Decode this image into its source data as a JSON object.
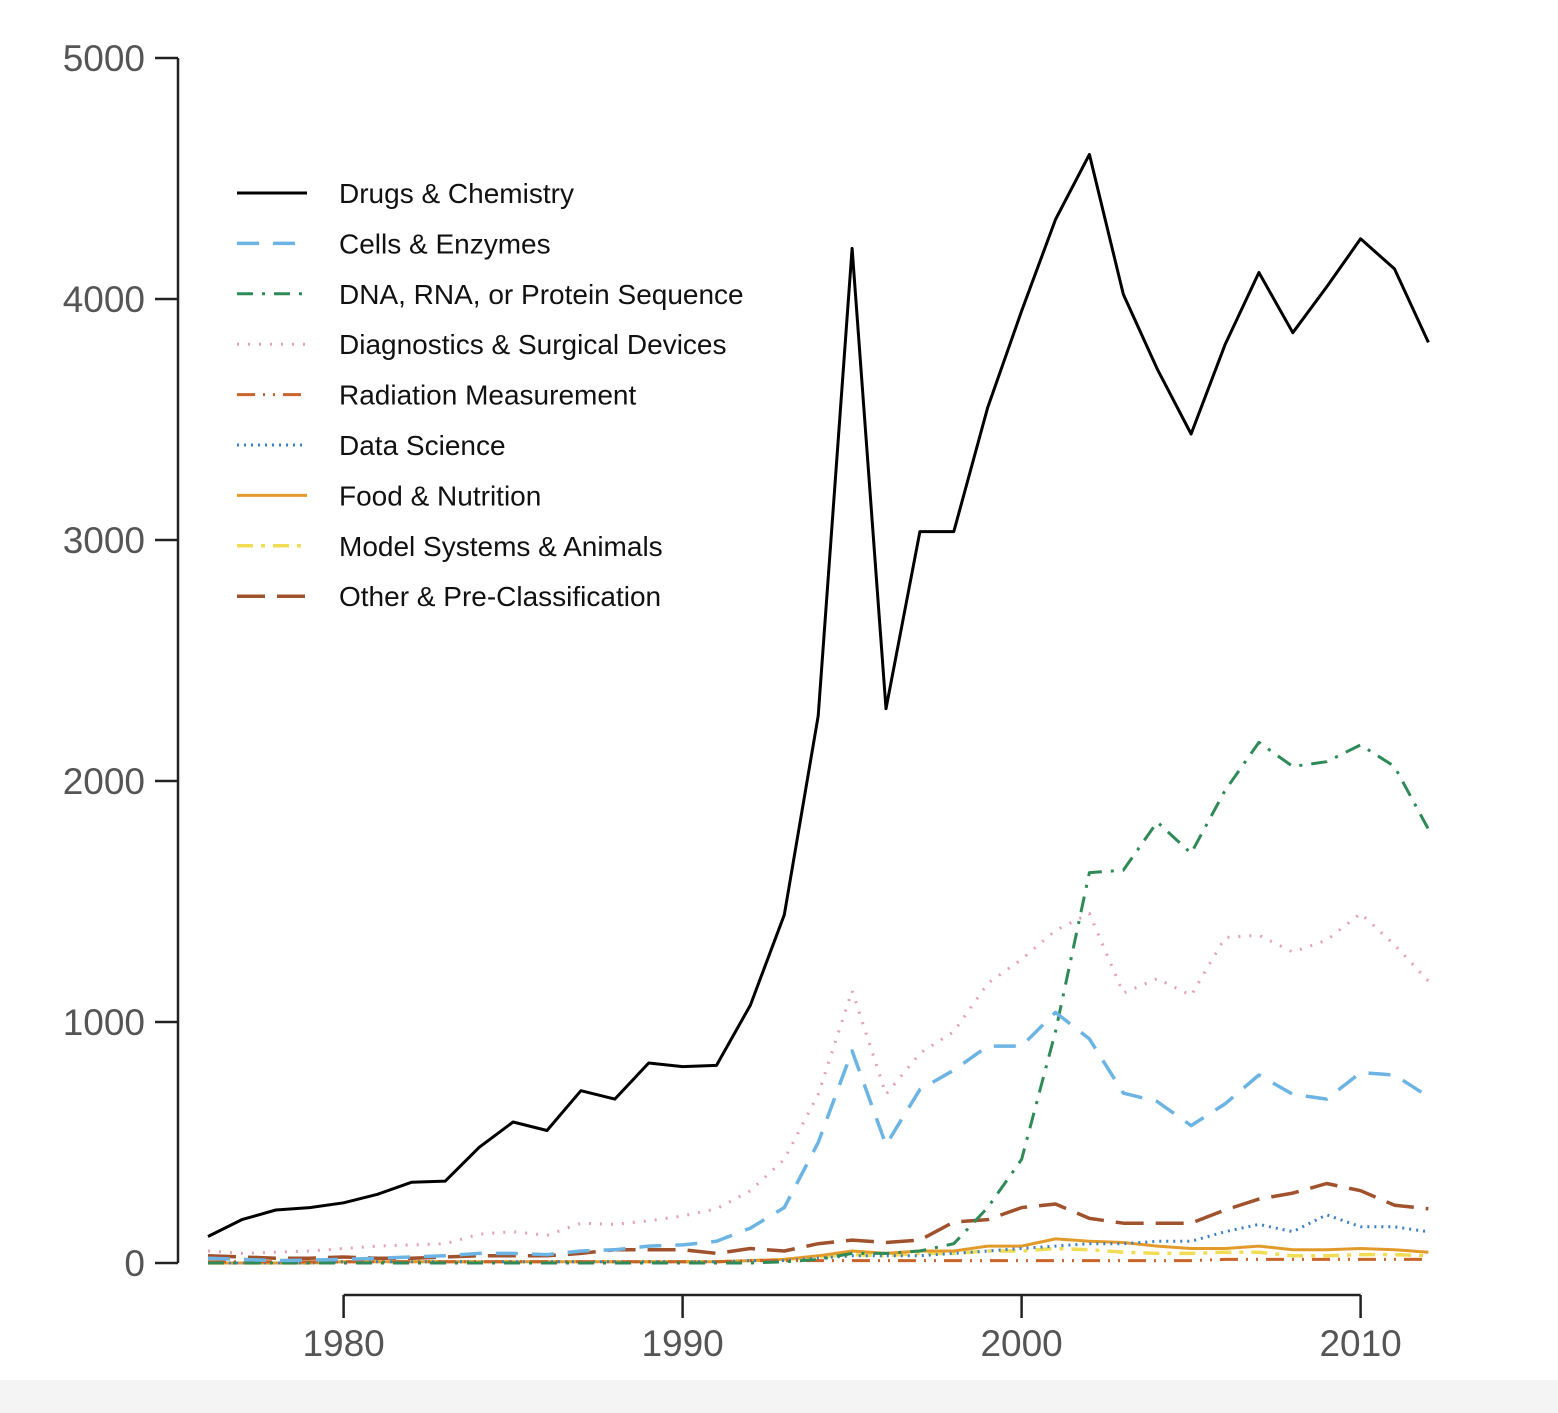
{
  "chart_data": {
    "type": "line",
    "title": "",
    "xlabel": "",
    "ylabel": "",
    "xlim": [
      1976,
      2012
    ],
    "ylim": [
      0,
      5000
    ],
    "x_ticks": [
      1980,
      1990,
      2000,
      2010
    ],
    "y_ticks": [
      0,
      1000,
      2000,
      3000,
      4000,
      5000
    ],
    "x_tick_labels": [
      "1980",
      "1990",
      "2000",
      "2010"
    ],
    "y_tick_labels": [
      "0",
      "1000",
      "2000",
      "3000",
      "4000",
      "5000"
    ],
    "legend_position": "top-left",
    "grid": false,
    "x": [
      1976,
      1977,
      1978,
      1979,
      1980,
      1981,
      1982,
      1983,
      1984,
      1985,
      1986,
      1987,
      1988,
      1989,
      1990,
      1991,
      1992,
      1993,
      1994,
      1995,
      1996,
      1997,
      1998,
      1999,
      2000,
      2001,
      2002,
      2003,
      2004,
      2005,
      2006,
      2007,
      2008,
      2009,
      2010,
      2011,
      2012
    ],
    "series": [
      {
        "name": "Drugs & Chemistry",
        "color": "#000000",
        "dash": "",
        "width": 3,
        "values": [
          110,
          180,
          220,
          230,
          250,
          285,
          335,
          340,
          480,
          585,
          550,
          715,
          680,
          830,
          815,
          820,
          1070,
          1445,
          2270,
          4210,
          2300,
          3035,
          3035,
          3550,
          3950,
          4330,
          4600,
          4020,
          3710,
          3440,
          3810,
          4110,
          3860,
          4050,
          4250,
          4125,
          3820
        ]
      },
      {
        "name": "Cells & Enzymes",
        "color": "#6cb4e4",
        "dash": "22 14",
        "width": 3.5,
        "values": [
          20,
          15,
          10,
          12,
          15,
          20,
          25,
          30,
          40,
          40,
          35,
          50,
          55,
          70,
          75,
          90,
          145,
          230,
          500,
          880,
          490,
          720,
          800,
          900,
          900,
          1040,
          930,
          705,
          670,
          570,
          660,
          780,
          700,
          680,
          790,
          780,
          690
        ]
      },
      {
        "name": "DNA, RNA, or Protein Sequence",
        "color": "#2e8b57",
        "dash": "16 9 3 9",
        "width": 3,
        "values": [
          0,
          0,
          0,
          0,
          0,
          0,
          0,
          0,
          0,
          0,
          0,
          0,
          0,
          0,
          0,
          0,
          0,
          5,
          15,
          40,
          40,
          50,
          80,
          230,
          430,
          960,
          1620,
          1630,
          1830,
          1700,
          1960,
          2160,
          2060,
          2080,
          2150,
          2060,
          1800
        ]
      },
      {
        "name": "Diagnostics & Surgical Devices",
        "color": "#e6a0b0",
        "dash": "2 9",
        "width": 3,
        "values": [
          50,
          40,
          45,
          50,
          60,
          70,
          75,
          80,
          120,
          130,
          115,
          165,
          160,
          175,
          195,
          225,
          300,
          430,
          700,
          1130,
          700,
          870,
          960,
          1160,
          1260,
          1380,
          1450,
          1120,
          1180,
          1110,
          1350,
          1360,
          1290,
          1340,
          1450,
          1320,
          1170
        ]
      },
      {
        "name": "Radiation Measurement",
        "color": "#c8632a",
        "dash": "18 8 2 8 2 8",
        "width": 3,
        "values": [
          5,
          5,
          5,
          5,
          5,
          5,
          5,
          5,
          5,
          5,
          5,
          5,
          5,
          5,
          5,
          5,
          10,
          10,
          10,
          10,
          10,
          10,
          10,
          10,
          10,
          10,
          10,
          10,
          10,
          10,
          15,
          15,
          15,
          15,
          15,
          15,
          15
        ]
      },
      {
        "name": "Data Science",
        "color": "#3b7fc4",
        "dash": "2 5",
        "width": 3,
        "values": [
          0,
          0,
          0,
          0,
          5,
          5,
          5,
          5,
          5,
          5,
          5,
          5,
          5,
          5,
          5,
          5,
          10,
          10,
          20,
          30,
          30,
          30,
          40,
          50,
          60,
          70,
          80,
          80,
          90,
          90,
          130,
          160,
          130,
          200,
          150,
          150,
          130
        ]
      },
      {
        "name": "Food & Nutrition",
        "color": "#e29b2b",
        "dash": "",
        "width": 3,
        "values": [
          0,
          0,
          0,
          0,
          5,
          5,
          5,
          5,
          5,
          5,
          5,
          5,
          5,
          5,
          5,
          5,
          10,
          15,
          30,
          50,
          40,
          50,
          50,
          70,
          70,
          100,
          90,
          85,
          70,
          60,
          60,
          70,
          55,
          55,
          60,
          55,
          45
        ]
      },
      {
        "name": "Model Systems & Animals",
        "color": "#f1dc56",
        "dash": "16 8 4 8",
        "width": 3.5,
        "values": [
          0,
          0,
          0,
          0,
          5,
          5,
          5,
          5,
          5,
          5,
          5,
          5,
          5,
          5,
          5,
          5,
          10,
          15,
          25,
          35,
          30,
          40,
          40,
          50,
          50,
          60,
          55,
          45,
          40,
          40,
          45,
          45,
          30,
          30,
          35,
          35,
          30
        ]
      },
      {
        "name": "Other & Pre-Classification",
        "color": "#a0522d",
        "dash": "28 12",
        "width": 3.5,
        "values": [
          30,
          25,
          20,
          20,
          25,
          20,
          20,
          25,
          30,
          30,
          30,
          40,
          55,
          55,
          55,
          40,
          60,
          50,
          80,
          95,
          85,
          95,
          170,
          180,
          230,
          245,
          185,
          165,
          165,
          165,
          220,
          265,
          290,
          330,
          300,
          240,
          225
        ]
      }
    ]
  }
}
